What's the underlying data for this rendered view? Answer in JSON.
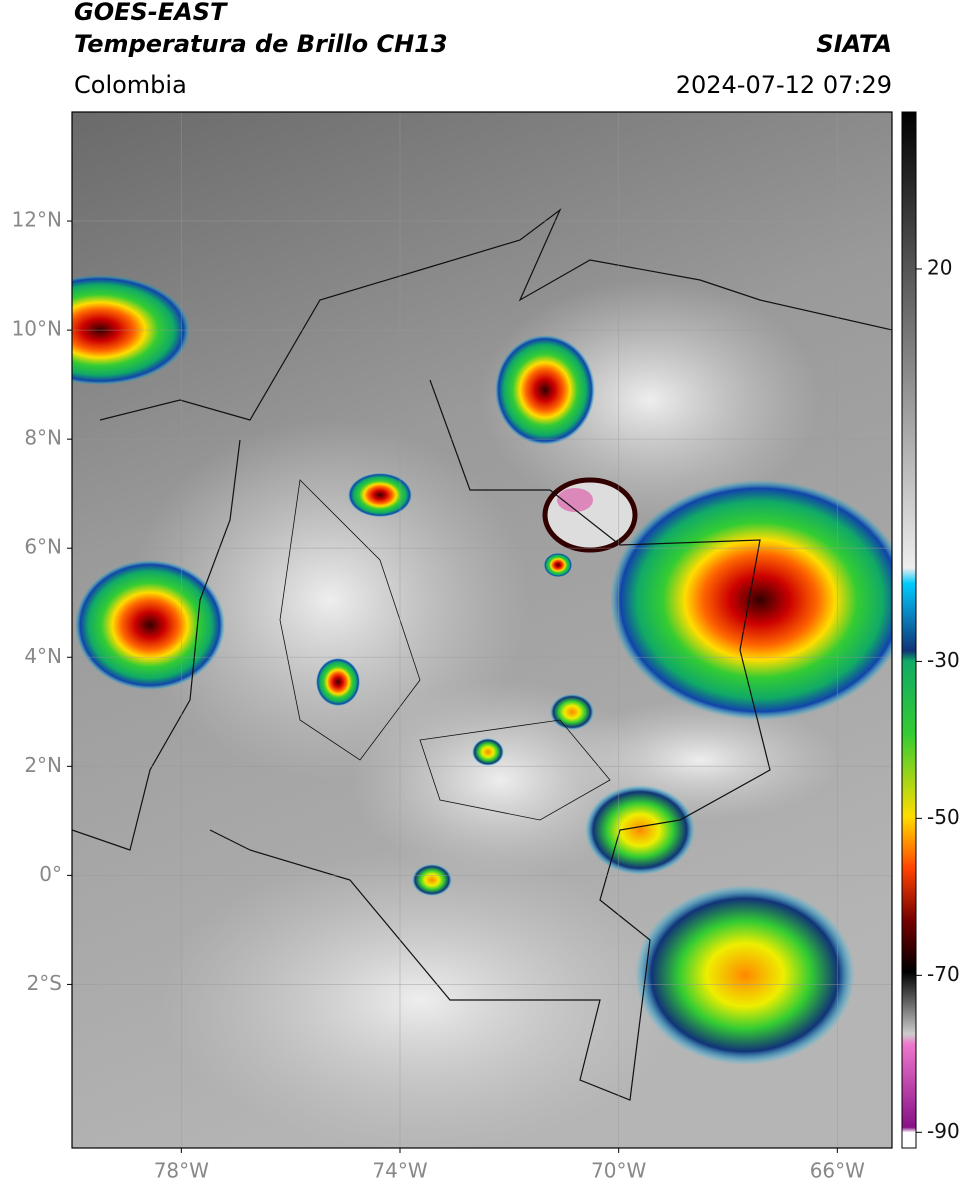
{
  "header": {
    "title": "GOES-EAST",
    "subtitle": "Temperatura de Brillo CH13",
    "source": "SIATA",
    "region": "Colombia",
    "datetime": "2024-07-12 07:29"
  },
  "map": {
    "xlim": [
      -80,
      -65
    ],
    "ylim": [
      -5,
      14
    ],
    "xticks": [
      {
        "value": -78,
        "label": "78°W"
      },
      {
        "value": -74,
        "label": "74°W"
      },
      {
        "value": -70,
        "label": "70°W"
      },
      {
        "value": -66,
        "label": "66°W"
      }
    ],
    "yticks": [
      {
        "value": 12,
        "label": "12°N"
      },
      {
        "value": 10,
        "label": "10°N"
      },
      {
        "value": 8,
        "label": "8°N"
      },
      {
        "value": 6,
        "label": "6°N"
      },
      {
        "value": 4,
        "label": "4°N"
      },
      {
        "value": 2,
        "label": "2°N"
      },
      {
        "value": 0,
        "label": "0°"
      },
      {
        "value": -2,
        "label": "2°S"
      }
    ],
    "grid": true
  },
  "colorbar": {
    "lim": [
      -92,
      40
    ],
    "ticks": [
      20,
      -30,
      -50,
      -70,
      -90
    ]
  }
}
